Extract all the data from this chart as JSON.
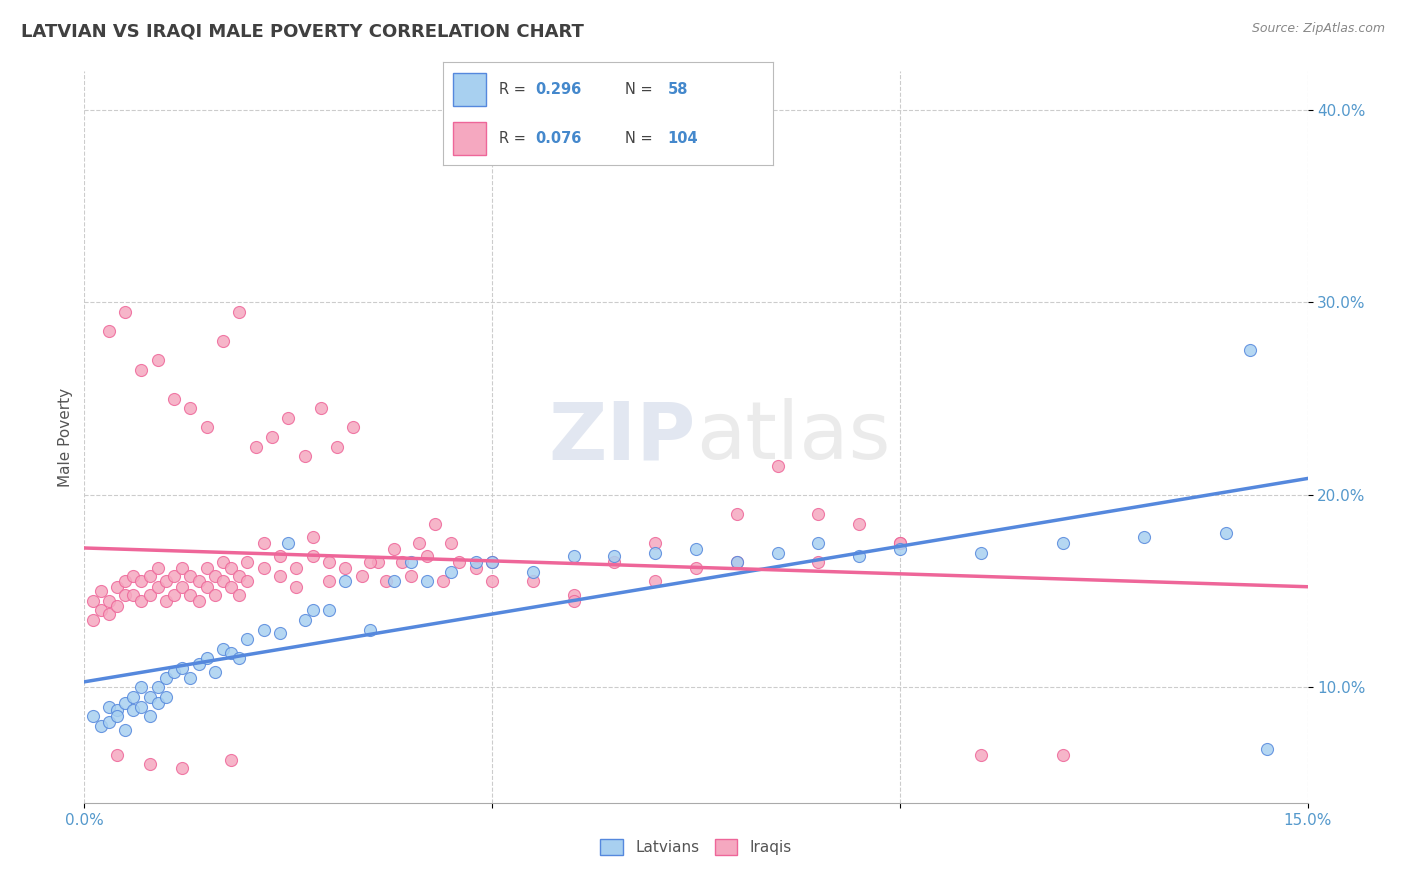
{
  "title": "LATVIAN VS IRAQI MALE POVERTY CORRELATION CHART",
  "source": "Source: ZipAtlas.com",
  "ylabel": "Male Poverty",
  "xlim": [
    0.0,
    0.15
  ],
  "ylim": [
    0.04,
    0.42
  ],
  "yticks": [
    0.1,
    0.2,
    0.3,
    0.4
  ],
  "ytick_labels": [
    "10.0%",
    "20.0%",
    "30.0%",
    "40.0%"
  ],
  "latvian_color": "#a8d0f0",
  "iraqi_color": "#f5a8c0",
  "latvian_line_color": "#5588dd",
  "iraqi_line_color": "#ee6699",
  "latvian_R": 0.296,
  "latvian_N": 58,
  "iraqi_R": 0.076,
  "iraqi_N": 104,
  "background_color": "#ffffff",
  "grid_color": "#cccccc",
  "watermark_zip": "ZIP",
  "watermark_atlas": "atlas",
  "legend_label_latvians": "Latvians",
  "legend_label_iraqis": "Iraqis",
  "latvian_x": [
    0.001,
    0.002,
    0.003,
    0.003,
    0.004,
    0.004,
    0.005,
    0.005,
    0.006,
    0.006,
    0.007,
    0.007,
    0.008,
    0.008,
    0.009,
    0.009,
    0.01,
    0.01,
    0.011,
    0.012,
    0.013,
    0.014,
    0.015,
    0.016,
    0.017,
    0.018,
    0.019,
    0.02,
    0.022,
    0.024,
    0.025,
    0.027,
    0.028,
    0.03,
    0.032,
    0.035,
    0.038,
    0.04,
    0.042,
    0.045,
    0.048,
    0.05,
    0.055,
    0.06,
    0.065,
    0.07,
    0.075,
    0.08,
    0.085,
    0.09,
    0.095,
    0.1,
    0.11,
    0.12,
    0.13,
    0.14,
    0.143,
    0.145
  ],
  "latvian_y": [
    0.085,
    0.08,
    0.09,
    0.082,
    0.088,
    0.085,
    0.092,
    0.078,
    0.095,
    0.088,
    0.1,
    0.09,
    0.095,
    0.085,
    0.1,
    0.092,
    0.105,
    0.095,
    0.108,
    0.11,
    0.105,
    0.112,
    0.115,
    0.108,
    0.12,
    0.118,
    0.115,
    0.125,
    0.13,
    0.128,
    0.175,
    0.135,
    0.14,
    0.14,
    0.155,
    0.13,
    0.155,
    0.165,
    0.155,
    0.16,
    0.165,
    0.165,
    0.16,
    0.168,
    0.168,
    0.17,
    0.172,
    0.165,
    0.17,
    0.175,
    0.168,
    0.172,
    0.17,
    0.175,
    0.178,
    0.18,
    0.275,
    0.068
  ],
  "iraqi_x": [
    0.001,
    0.001,
    0.002,
    0.002,
    0.003,
    0.003,
    0.004,
    0.004,
    0.005,
    0.005,
    0.006,
    0.006,
    0.007,
    0.007,
    0.008,
    0.008,
    0.009,
    0.009,
    0.01,
    0.01,
    0.011,
    0.011,
    0.012,
    0.012,
    0.013,
    0.013,
    0.014,
    0.014,
    0.015,
    0.015,
    0.016,
    0.016,
    0.017,
    0.017,
    0.018,
    0.018,
    0.019,
    0.019,
    0.02,
    0.02,
    0.022,
    0.022,
    0.024,
    0.024,
    0.026,
    0.026,
    0.028,
    0.028,
    0.03,
    0.03,
    0.032,
    0.034,
    0.036,
    0.038,
    0.04,
    0.042,
    0.044,
    0.046,
    0.048,
    0.05,
    0.055,
    0.06,
    0.065,
    0.07,
    0.075,
    0.08,
    0.085,
    0.09,
    0.095,
    0.1,
    0.003,
    0.005,
    0.007,
    0.009,
    0.011,
    0.013,
    0.015,
    0.017,
    0.019,
    0.021,
    0.023,
    0.025,
    0.027,
    0.029,
    0.031,
    0.033,
    0.035,
    0.037,
    0.039,
    0.041,
    0.043,
    0.045,
    0.05,
    0.06,
    0.07,
    0.08,
    0.09,
    0.1,
    0.11,
    0.12,
    0.004,
    0.008,
    0.012,
    0.018
  ],
  "iraqi_y": [
    0.135,
    0.145,
    0.15,
    0.14,
    0.145,
    0.138,
    0.152,
    0.142,
    0.148,
    0.155,
    0.158,
    0.148,
    0.155,
    0.145,
    0.158,
    0.148,
    0.162,
    0.152,
    0.155,
    0.145,
    0.158,
    0.148,
    0.162,
    0.152,
    0.158,
    0.148,
    0.155,
    0.145,
    0.162,
    0.152,
    0.158,
    0.148,
    0.165,
    0.155,
    0.162,
    0.152,
    0.158,
    0.148,
    0.165,
    0.155,
    0.162,
    0.175,
    0.158,
    0.168,
    0.162,
    0.152,
    0.168,
    0.178,
    0.155,
    0.165,
    0.162,
    0.158,
    0.165,
    0.172,
    0.158,
    0.168,
    0.155,
    0.165,
    0.162,
    0.165,
    0.155,
    0.148,
    0.165,
    0.175,
    0.162,
    0.19,
    0.215,
    0.19,
    0.185,
    0.175,
    0.285,
    0.295,
    0.265,
    0.27,
    0.25,
    0.245,
    0.235,
    0.28,
    0.295,
    0.225,
    0.23,
    0.24,
    0.22,
    0.245,
    0.225,
    0.235,
    0.165,
    0.155,
    0.165,
    0.175,
    0.185,
    0.175,
    0.155,
    0.145,
    0.155,
    0.165,
    0.165,
    0.175,
    0.065,
    0.065,
    0.065,
    0.06,
    0.058,
    0.062
  ]
}
